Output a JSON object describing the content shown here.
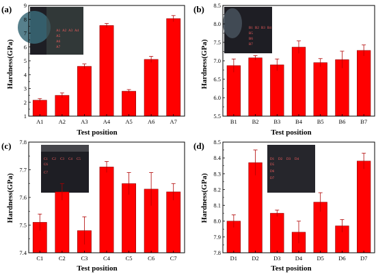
{
  "colors": {
    "bar": "#ff0000",
    "bar_edge": "#8b0000",
    "error": "#b00000",
    "inset_dark": "#1e1e24",
    "inset_accent": "#3a6a78"
  },
  "chart_data": [
    {
      "type": "bar",
      "panel_label": "(a)",
      "categories": [
        "A1",
        "A2",
        "A3",
        "A4",
        "A5",
        "A6",
        "A7"
      ],
      "values": [
        2.15,
        2.5,
        4.6,
        7.55,
        2.8,
        5.1,
        8.05
      ],
      "errors": [
        0.12,
        0.18,
        0.17,
        0.15,
        0.12,
        0.22,
        0.22
      ],
      "xlabel": "Test position",
      "ylabel": "Hardness(GPa)",
      "ylim": [
        1,
        9
      ],
      "yticks": [
        "1",
        "2",
        "3",
        "4",
        "5",
        "6",
        "7",
        "8",
        "9"
      ],
      "inset_labels": [
        "A1",
        "A2",
        "A3",
        "A4",
        "A5",
        "A6",
        "A7"
      ]
    },
    {
      "type": "bar",
      "panel_label": "(b)",
      "categories": [
        "B1",
        "B2",
        "B3",
        "B4",
        "B5",
        "B6",
        "B7"
      ],
      "values": [
        6.87,
        7.08,
        6.89,
        7.37,
        6.95,
        7.03,
        7.28
      ],
      "errors": [
        0.18,
        0.06,
        0.16,
        0.17,
        0.11,
        0.23,
        0.15
      ],
      "xlabel": "Test position",
      "ylabel": "Hardness(GPa)",
      "ylim": [
        5.5,
        8.5
      ],
      "yticks": [
        "5.5",
        "6.0",
        "6.5",
        "7.0",
        "7.5",
        "8.0",
        "8.5"
      ],
      "inset_labels": [
        "B1",
        "B2",
        "B3",
        "B4",
        "B5",
        "B6",
        "B7"
      ]
    },
    {
      "type": "bar",
      "panel_label": "(c)",
      "categories": [
        "C1",
        "C2",
        "C3",
        "C4",
        "C5",
        "C6",
        "C7"
      ],
      "values": [
        7.51,
        7.62,
        7.48,
        7.71,
        7.65,
        7.63,
        7.62
      ],
      "errors": [
        0.03,
        0.03,
        0.05,
        0.02,
        0.04,
        0.06,
        0.03
      ],
      "xlabel": "Test position",
      "ylabel": "Hardness(GPa)",
      "ylim": [
        7.4,
        7.8
      ],
      "yticks": [
        "7.4",
        "7.5",
        "7.6",
        "7.7",
        "7.8"
      ],
      "inset_labels": [
        "C1",
        "C2",
        "C3",
        "C4",
        "C5",
        "C6",
        "C7"
      ]
    },
    {
      "type": "bar",
      "panel_label": "(d)",
      "categories": [
        "D1",
        "D2",
        "D3",
        "D4",
        "D5",
        "D6",
        "D7"
      ],
      "values": [
        8.0,
        8.37,
        8.05,
        7.93,
        8.12,
        7.97,
        8.38
      ],
      "errors": [
        0.04,
        0.08,
        0.02,
        0.07,
        0.06,
        0.04,
        0.05
      ],
      "xlabel": "Test position",
      "ylabel": "Hardness(GPa)",
      "ylim": [
        7.8,
        8.5
      ],
      "yticks": [
        "7.8",
        "7.9",
        "8.0",
        "8.1",
        "8.2",
        "8.3",
        "8.4",
        "8.5"
      ],
      "inset_labels": [
        "D1",
        "D2",
        "D3",
        "D4",
        "D5",
        "D6",
        "D7"
      ]
    }
  ]
}
